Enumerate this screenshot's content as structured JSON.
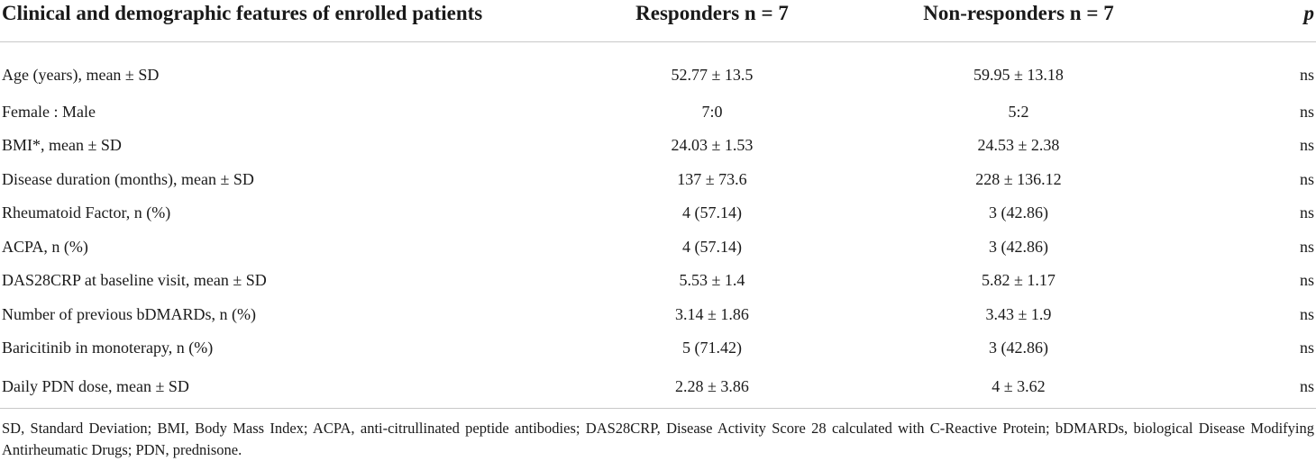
{
  "table": {
    "headers": {
      "label": "Clinical and demographic features of enrolled patients",
      "responders": "Responders n = 7",
      "non_responders": "Non-responders n = 7",
      "p": "p"
    },
    "rows": [
      {
        "label": "Age (years), mean ± SD",
        "responders": "52.77 ± 13.5",
        "non_responders": "59.95 ± 13.18",
        "p": "ns"
      },
      {
        "label": "Female : Male",
        "responders": "7:0",
        "non_responders": "5:2",
        "p": "ns"
      },
      {
        "label": "BMI*, mean ± SD",
        "responders": "24.03 ± 1.53",
        "non_responders": "24.53 ± 2.38",
        "p": "ns"
      },
      {
        "label": "Disease duration (months), mean ± SD",
        "responders": "137 ± 73.6",
        "non_responders": "228 ± 136.12",
        "p": "ns"
      },
      {
        "label": "Rheumatoid Factor, n (%)",
        "responders": "4 (57.14)",
        "non_responders": "3 (42.86)",
        "p": "ns"
      },
      {
        "label": "ACPA, n (%)",
        "responders": "4 (57.14)",
        "non_responders": "3 (42.86)",
        "p": "ns"
      },
      {
        "label": "DAS28CRP at baseline visit, mean ± SD",
        "responders": "5.53 ± 1.4",
        "non_responders": "5.82 ± 1.17",
        "p": "ns"
      },
      {
        "label": "Number of previous bDMARDs, n (%)",
        "responders": "3.14 ± 1.86",
        "non_responders": "3.43 ± 1.9",
        "p": "ns"
      },
      {
        "label": "Baricitinib in monoterapy, n (%)",
        "responders": "5 (71.42)",
        "non_responders": "3 (42.86)",
        "p": "ns"
      },
      {
        "label": "Daily PDN dose, mean ± SD",
        "responders": "2.28 ± 3.86",
        "non_responders": "4 ± 3.62",
        "p": "ns"
      }
    ],
    "footnote": "SD, Standard Deviation; BMI, Body Mass Index; ACPA, anti-citrullinated peptide antibodies; DAS28CRP, Disease Activity Score 28 calculated with C-Reactive Protein; bDMARDs, biological Disease Modifying Antirheumatic Drugs; PDN, prednisone."
  }
}
